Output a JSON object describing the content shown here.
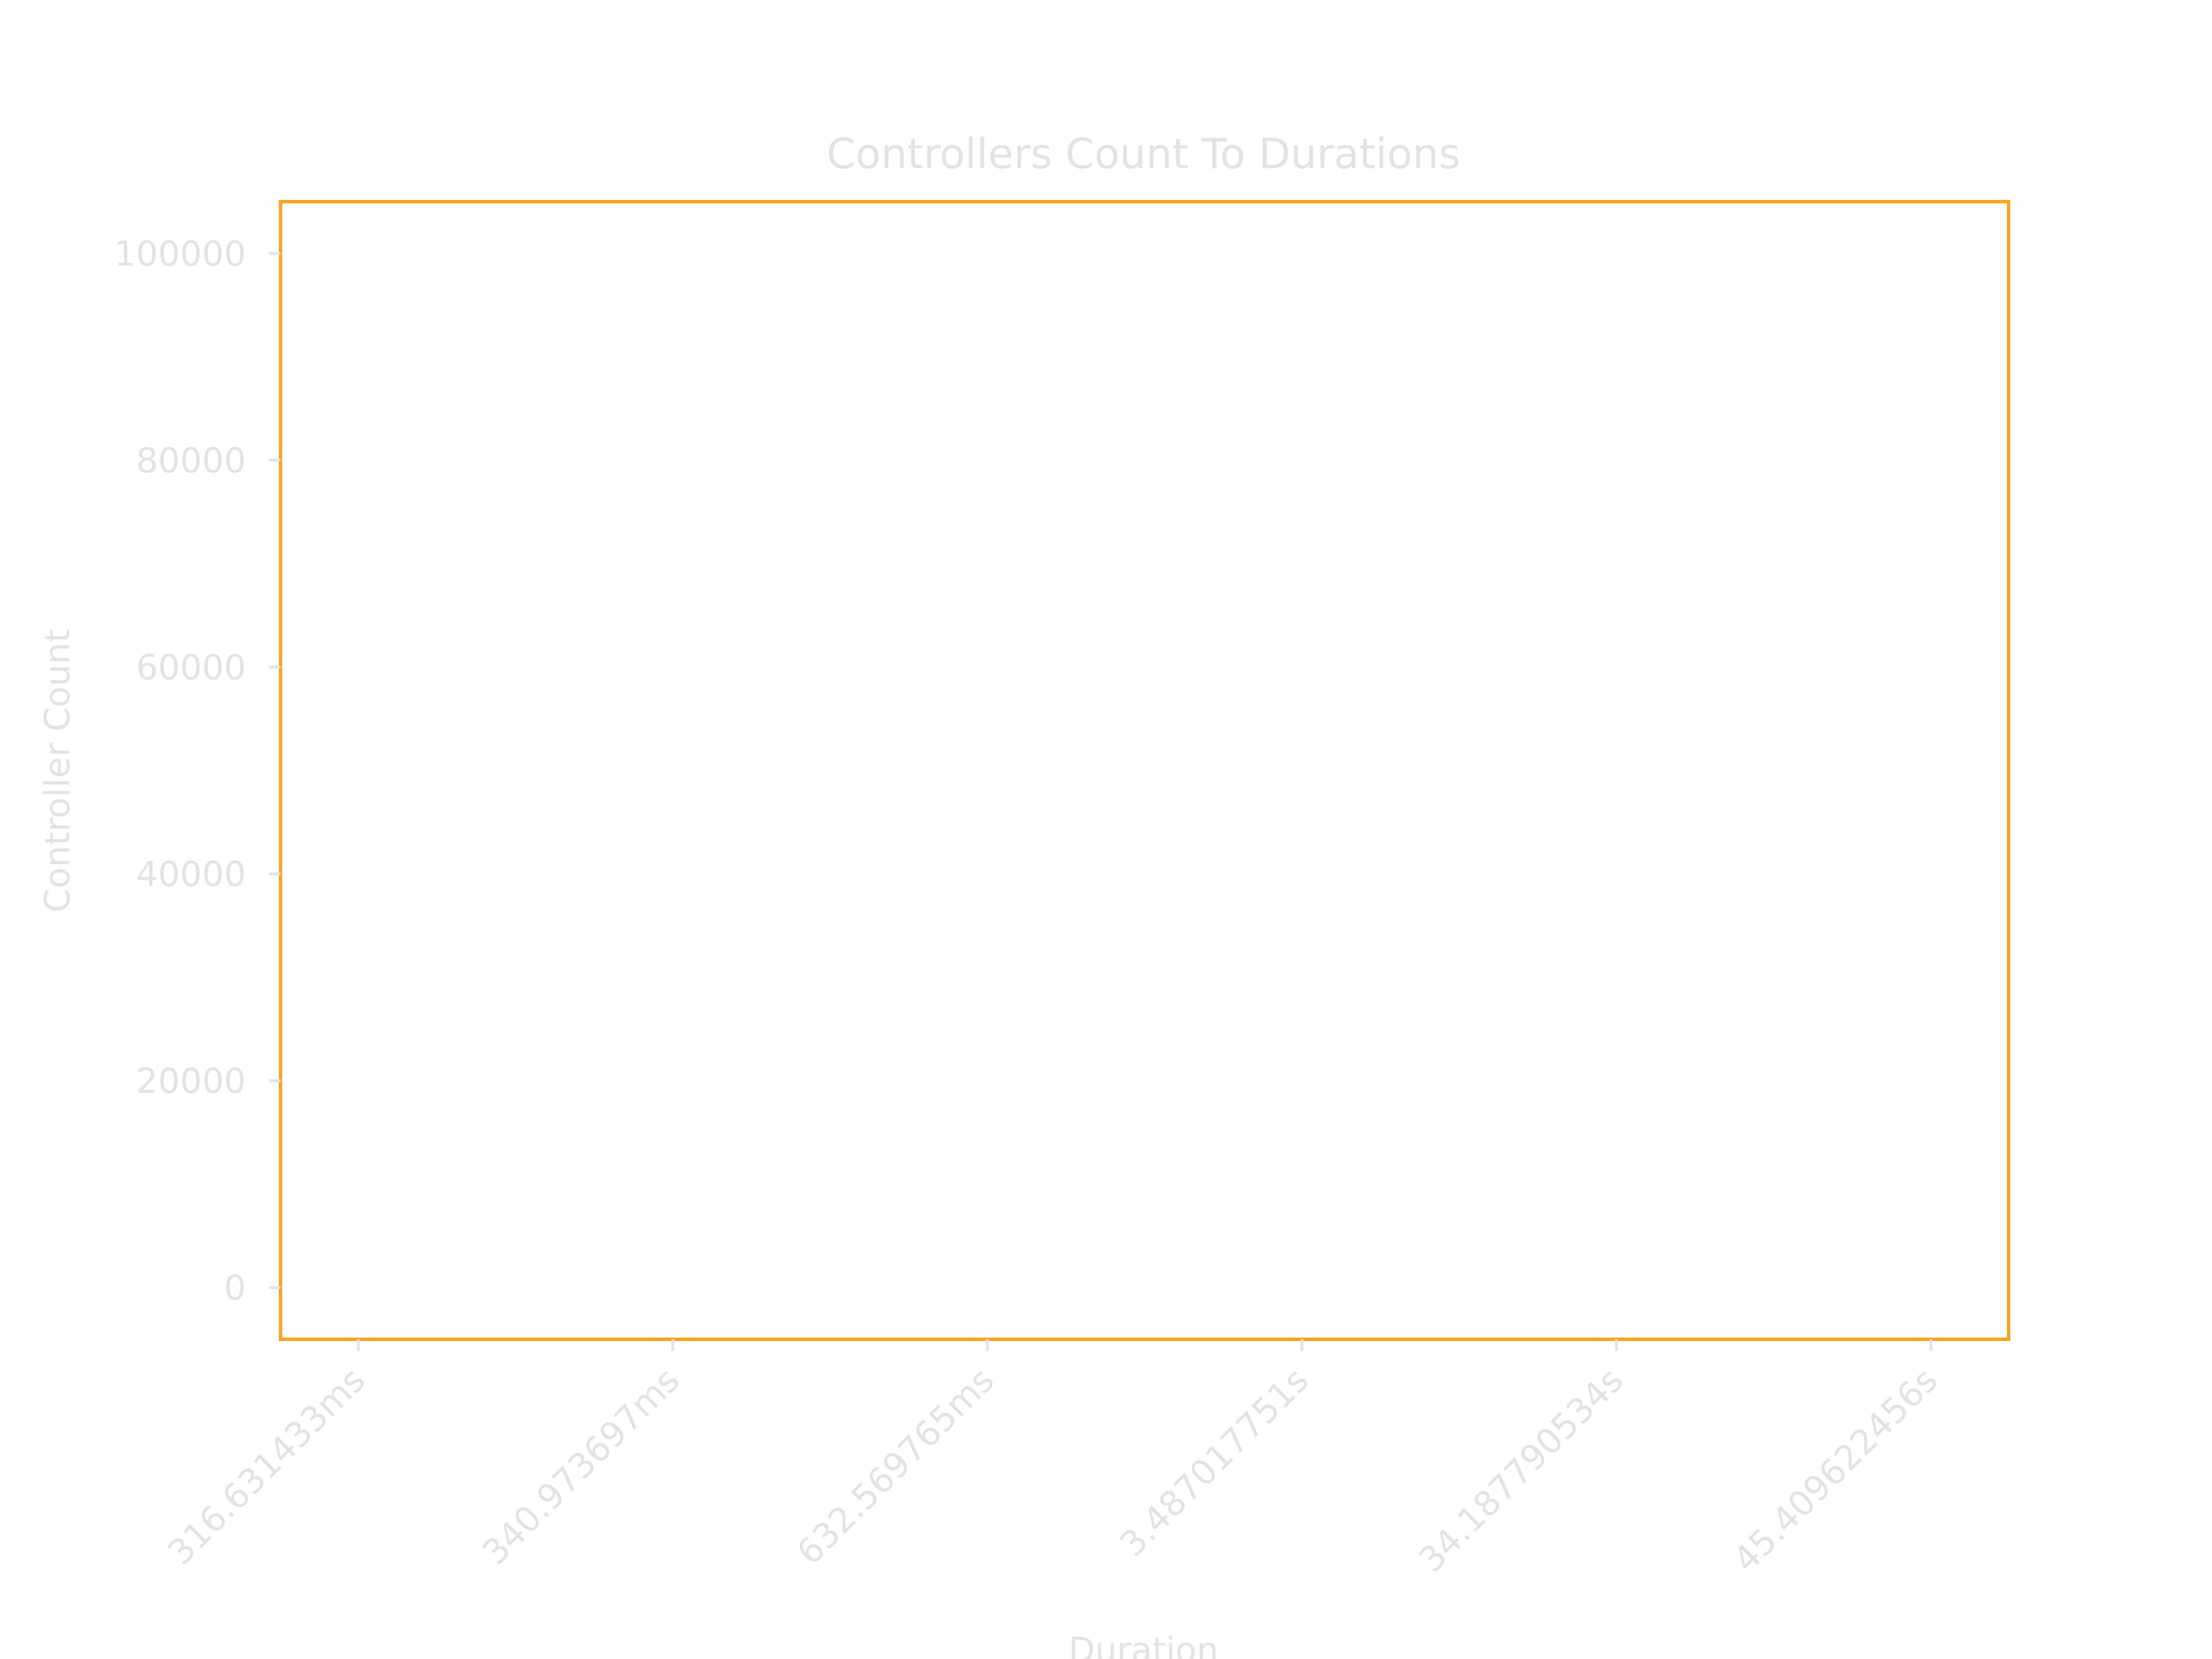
{
  "chart_data": {
    "type": "bar",
    "title": "Controllers Count To Durations",
    "xlabel": "Duration",
    "ylabel": "Controller Count",
    "categories": [
      "316.631433ms",
      "340.973697ms",
      "632.569765ms",
      "3.487017751s",
      "34.187790534s",
      "45.409622456s"
    ],
    "values": [
      0,
      0,
      0,
      0,
      0,
      0
    ],
    "yticks": [
      0,
      20000,
      40000,
      60000,
      80000,
      100000
    ],
    "ylim": [
      -5000,
      105000
    ],
    "grid": false,
    "legend": "none"
  },
  "colors": {
    "frame": "#f5a623",
    "text": "#e3e3e3",
    "background": "#ffffff"
  }
}
